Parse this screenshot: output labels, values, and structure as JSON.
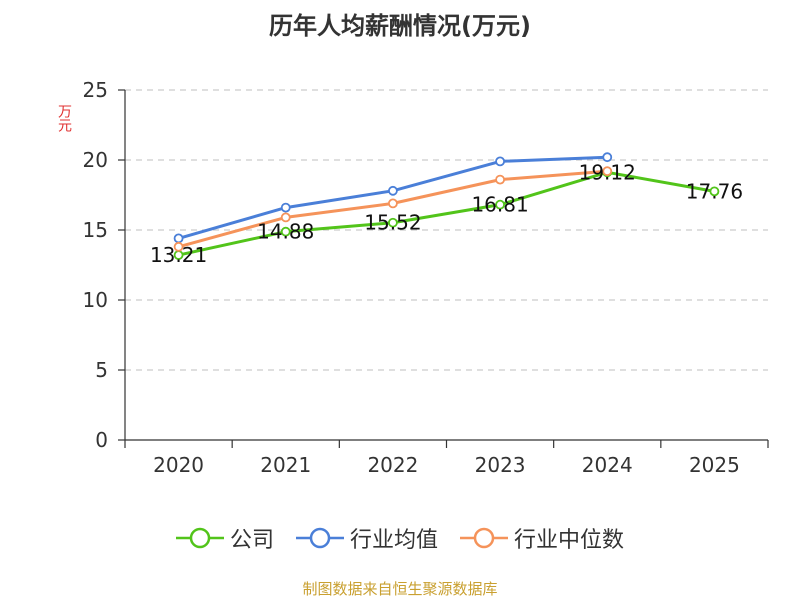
{
  "title": "历年人均薪酬情况(万元)",
  "y_unit": "万元",
  "footer": "制图数据来自恒生聚源数据库",
  "colors": {
    "company": "#52c41a",
    "industry_avg": "#4a7fd8",
    "industry_median": "#f5935a",
    "grid": "#cccccc",
    "axis": "#333333"
  },
  "chart_data": {
    "type": "line",
    "title": "历年人均薪酬情况(万元)",
    "ylabel": "万元",
    "xlabel": "",
    "categories": [
      "2020",
      "2021",
      "2022",
      "2023",
      "2024",
      "2025"
    ],
    "ylim": [
      0,
      25
    ],
    "yticks": [
      0,
      5,
      10,
      15,
      20,
      25
    ],
    "grid": true,
    "legend_position": "bottom",
    "series": [
      {
        "name": "公司",
        "values": [
          13.21,
          14.88,
          15.52,
          16.81,
          19.12,
          17.76
        ],
        "labels": [
          "13.21",
          "14.88",
          "15.52",
          "16.81",
          "19.12",
          "17.76"
        ]
      },
      {
        "name": "行业均值",
        "values": [
          14.4,
          16.6,
          17.8,
          19.9,
          20.2,
          null
        ]
      },
      {
        "name": "行业中位数",
        "values": [
          13.8,
          15.9,
          16.9,
          18.6,
          19.2,
          null
        ]
      }
    ]
  }
}
